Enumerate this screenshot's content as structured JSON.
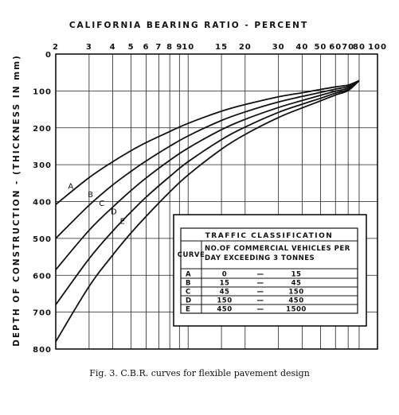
{
  "chart_data": {
    "type": "line",
    "title": "CALIFORNIA BEARING RATIO - PERCENT",
    "xlabel": "CALIFORNIA BEARING RATIO - PERCENT",
    "ylabel": "DEPTH OF CONSTRUCTION - (THICKNESS IN mm)",
    "xscale": "log",
    "xlim": [
      2,
      100
    ],
    "ylim": [
      0,
      800
    ],
    "y_inverted": true,
    "x_ticks": [
      "2",
      "3",
      "4",
      "5",
      "6",
      "7",
      "8",
      "9",
      "10",
      "15",
      "20",
      "30",
      "40",
      "50",
      "60",
      "70",
      "80",
      "100"
    ],
    "x_tick_values": [
      2,
      3,
      4,
      5,
      6,
      7,
      8,
      9,
      10,
      15,
      20,
      30,
      40,
      50,
      60,
      70,
      80,
      100
    ],
    "y_ticks": [
      "0",
      "100",
      "200",
      "300",
      "400",
      "500",
      "600",
      "700",
      "800"
    ],
    "y_tick_values": [
      0,
      100,
      200,
      300,
      400,
      500,
      600,
      700,
      800
    ],
    "grid": true,
    "series": [
      {
        "name": "A",
        "x": [
          2,
          3,
          4,
          5,
          6,
          8,
          10,
          15,
          20,
          30,
          40,
          50,
          60,
          70,
          80
        ],
        "y": [
          408,
          335,
          292,
          262,
          240,
          210,
          188,
          155,
          137,
          116,
          105,
          96,
          89,
          84,
          72
        ]
      },
      {
        "name": "B",
        "x": [
          2,
          3,
          4,
          5,
          6,
          8,
          10,
          15,
          20,
          30,
          40,
          50,
          60,
          70,
          80
        ],
        "y": [
          500,
          410,
          355,
          318,
          290,
          250,
          222,
          180,
          157,
          130,
          115,
          104,
          95,
          88,
          72
        ]
      },
      {
        "name": "C",
        "x": [
          2,
          3,
          4,
          5,
          6,
          8,
          10,
          15,
          20,
          30,
          40,
          50,
          60,
          70,
          80
        ],
        "y": [
          585,
          478,
          415,
          370,
          336,
          288,
          255,
          205,
          177,
          145,
          126,
          112,
          101,
          92,
          72
        ]
      },
      {
        "name": "D",
        "x": [
          2,
          3,
          4,
          5,
          6,
          8,
          10,
          15,
          20,
          30,
          40,
          50,
          60,
          70,
          80
        ],
        "y": [
          680,
          555,
          480,
          428,
          388,
          332,
          292,
          232,
          198,
          158,
          136,
          120,
          106,
          96,
          72
        ]
      },
      {
        "name": "E",
        "x": [
          2,
          3,
          4,
          5,
          6,
          8,
          10,
          15,
          20,
          30,
          40,
          50,
          60,
          70,
          80
        ],
        "y": [
          780,
          630,
          545,
          485,
          440,
          374,
          328,
          258,
          218,
          172,
          146,
          127,
          111,
          99,
          72
        ]
      }
    ],
    "curve_labels": [
      {
        "text": "A",
        "x": 2.4,
        "y": 365
      },
      {
        "text": "B",
        "x": 3.05,
        "y": 388
      },
      {
        "text": "C",
        "x": 3.5,
        "y": 412
      },
      {
        "text": "D",
        "x": 4.05,
        "y": 435
      },
      {
        "text": "E",
        "x": 4.5,
        "y": 460
      }
    ],
    "table": {
      "title": "TRAFFIC CLASSIFICATION",
      "col1_header": "CURVE",
      "col2_header_line1": "NO.OF COMMERCIAL VEHICLES PER",
      "col2_header_line2": "DAY EXCEEDING 3 TONNES",
      "rows": [
        {
          "curve": "A",
          "from": "0",
          "dash": "—",
          "to": "15"
        },
        {
          "curve": "B",
          "from": "15",
          "dash": "—",
          "to": "45"
        },
        {
          "curve": "C",
          "from": "45",
          "dash": "—",
          "to": "150"
        },
        {
          "curve": "D",
          "from": "150",
          "dash": "—",
          "to": "450"
        },
        {
          "curve": "E",
          "from": "450",
          "dash": "—",
          "to": "1500"
        }
      ]
    }
  },
  "caption": "Fig. 3. C.B.R. curves for flexible pavement design"
}
